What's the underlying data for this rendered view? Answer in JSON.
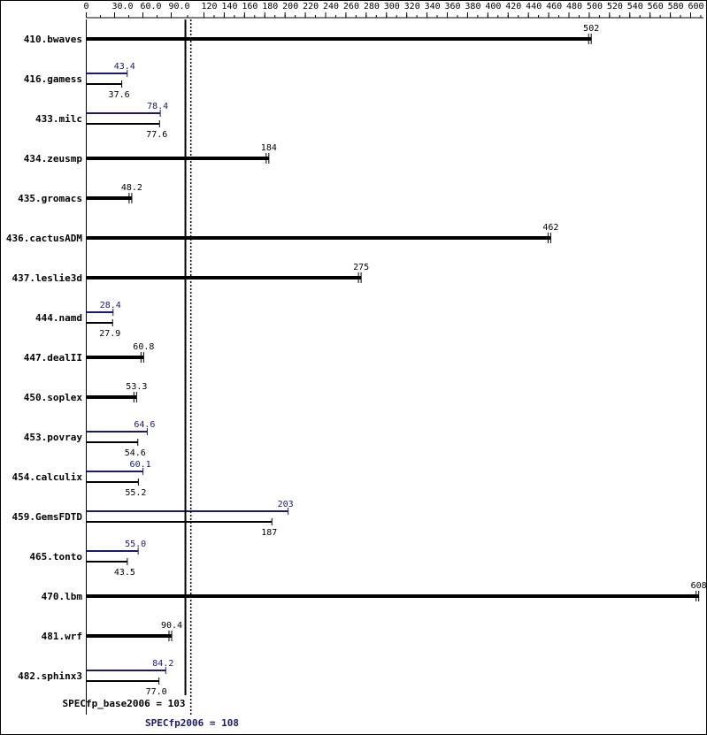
{
  "chart_data": {
    "type": "bar",
    "orientation": "horizontal",
    "xlim": [
      0,
      610
    ],
    "ticks": [
      0,
      30.0,
      60.0,
      90.0,
      120,
      140,
      160,
      180,
      200,
      220,
      240,
      260,
      280,
      300,
      320,
      340,
      360,
      380,
      400,
      420,
      440,
      460,
      480,
      500,
      520,
      540,
      560,
      580,
      600
    ],
    "tick_labels": [
      "0",
      "30.0",
      "60.0",
      "90.0",
      "120",
      "140",
      "160",
      "180",
      "200",
      "220",
      "240",
      "260",
      "280",
      "300",
      "320",
      "340",
      "360",
      "380",
      "400",
      "420",
      "440",
      "460",
      "480",
      "500",
      "520",
      "540",
      "560",
      "580",
      "600"
    ],
    "colors": {
      "base": "#000000",
      "peak": "#191970"
    },
    "benchmarks": [
      {
        "name": "410.bwaves",
        "base": 502,
        "base_label": "502",
        "peak": null,
        "peak_label": ""
      },
      {
        "name": "416.gamess",
        "base": 37.6,
        "base_label": "37.6",
        "peak": 43.4,
        "peak_label": "43.4"
      },
      {
        "name": "433.milc",
        "base": 77.6,
        "base_label": "77.6",
        "peak": 78.4,
        "peak_label": "78.4"
      },
      {
        "name": "434.zeusmp",
        "base": 184,
        "base_label": "184",
        "peak": null,
        "peak_label": ""
      },
      {
        "name": "435.gromacs",
        "base": 48.2,
        "base_label": "48.2",
        "peak": null,
        "peak_label": ""
      },
      {
        "name": "436.cactusADM",
        "base": 462,
        "base_label": "462",
        "peak": null,
        "peak_label": ""
      },
      {
        "name": "437.leslie3d",
        "base": 275,
        "base_label": "275",
        "peak": null,
        "peak_label": ""
      },
      {
        "name": "444.namd",
        "base": 27.9,
        "base_label": "27.9",
        "peak": 28.4,
        "peak_label": "28.4"
      },
      {
        "name": "447.dealII",
        "base": 60.8,
        "base_label": "60.8",
        "peak": null,
        "peak_label": ""
      },
      {
        "name": "450.soplex",
        "base": 53.3,
        "base_label": "53.3",
        "peak": null,
        "peak_label": ""
      },
      {
        "name": "453.povray",
        "base": 54.6,
        "base_label": "54.6",
        "peak": 64.6,
        "peak_label": "64.6"
      },
      {
        "name": "454.calculix",
        "base": 55.2,
        "base_label": "55.2",
        "peak": 60.1,
        "peak_label": "60.1"
      },
      {
        "name": "459.GemsFDTD",
        "base": 187,
        "base_label": "187",
        "peak": 203,
        "peak_label": "203"
      },
      {
        "name": "465.tonto",
        "base": 43.5,
        "base_label": "43.5",
        "peak": 55.0,
        "peak_label": "55.0"
      },
      {
        "name": "470.lbm",
        "base": 608,
        "base_label": "608",
        "peak": null,
        "peak_label": ""
      },
      {
        "name": "481.wrf",
        "base": 90.4,
        "base_label": "90.4",
        "peak": null,
        "peak_label": ""
      },
      {
        "name": "482.sphinx3",
        "base": 77.0,
        "base_label": "77.0",
        "peak": 84.2,
        "peak_label": "84.2"
      }
    ],
    "base_mean": {
      "value": 103,
      "label": "SPECfp_base2006 = 103"
    },
    "peak_mean": {
      "value": 108,
      "label": "SPECfp2006 = 108"
    }
  }
}
